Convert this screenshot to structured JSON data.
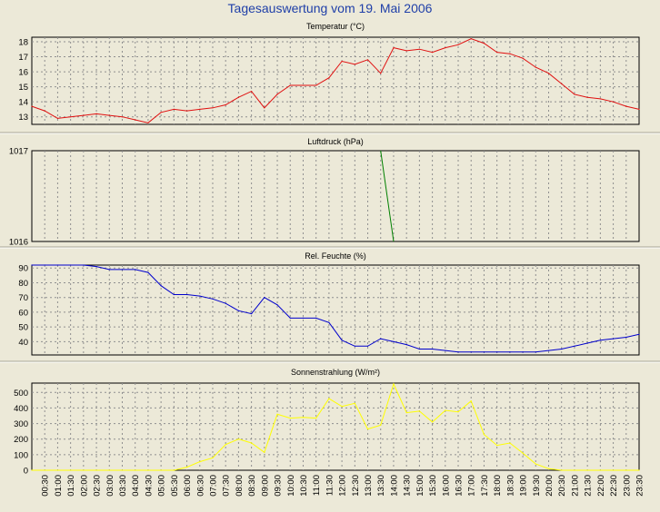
{
  "title": "Tagesauswertung vom 19. Mai 2006",
  "chart_data": [
    {
      "type": "line",
      "title": "Temperatur (°C)",
      "color": "#e01010",
      "ylim": [
        12.5,
        18.3
      ],
      "yticks": [
        13,
        14,
        15,
        16,
        17,
        18
      ],
      "grid": true,
      "x": [
        "00:00",
        "00:30",
        "01:00",
        "01:30",
        "02:00",
        "02:30",
        "03:00",
        "03:30",
        "04:00",
        "04:30",
        "05:00",
        "05:30",
        "06:00",
        "06:30",
        "07:00",
        "07:30",
        "08:00",
        "08:30",
        "09:00",
        "09:30",
        "10:00",
        "10:30",
        "11:00",
        "11:30",
        "12:00",
        "12:30",
        "13:00",
        "13:30",
        "14:00",
        "14:30",
        "15:00",
        "15:30",
        "16:00",
        "16:30",
        "17:00",
        "17:30",
        "18:00",
        "18:30",
        "19:00",
        "19:30",
        "20:00",
        "20:30",
        "21:00",
        "21:30",
        "22:00",
        "22:30",
        "23:00",
        "23:30"
      ],
      "values": [
        13.7,
        13.4,
        12.9,
        13.0,
        13.1,
        13.2,
        13.1,
        13.0,
        12.8,
        12.6,
        13.3,
        13.5,
        13.4,
        13.5,
        13.6,
        13.8,
        14.3,
        14.7,
        13.6,
        14.5,
        15.1,
        15.1,
        15.1,
        15.6,
        16.7,
        16.5,
        16.8,
        15.9,
        17.6,
        17.4,
        17.5,
        17.3,
        17.6,
        17.8,
        18.2,
        17.9,
        17.3,
        17.2,
        16.9,
        16.3,
        15.9,
        15.2,
        14.5,
        14.3,
        14.2,
        14.0,
        13.7,
        13.5
      ]
    },
    {
      "type": "line",
      "title": "Luftdruck (hPa)",
      "color": "#008000",
      "ylim": [
        1016,
        1017
      ],
      "yticks": [
        1016,
        1017
      ],
      "grid": true,
      "segment": {
        "x": [
          "13:30",
          "14:00"
        ],
        "values": [
          1017,
          1016
        ]
      }
    },
    {
      "type": "line",
      "title": "Rel. Feuchte (%)",
      "color": "#0000cc",
      "ylim": [
        31,
        92
      ],
      "yticks": [
        40,
        50,
        60,
        70,
        80,
        90
      ],
      "grid": true,
      "x": [
        "00:00",
        "00:30",
        "01:00",
        "01:30",
        "02:00",
        "02:30",
        "03:00",
        "03:30",
        "04:00",
        "04:30",
        "05:00",
        "05:30",
        "06:00",
        "06:30",
        "07:00",
        "07:30",
        "08:00",
        "08:30",
        "09:00",
        "09:30",
        "10:00",
        "10:30",
        "11:00",
        "11:30",
        "12:00",
        "12:30",
        "13:00",
        "13:30",
        "14:00",
        "14:30",
        "15:00",
        "15:30",
        "16:00",
        "16:30",
        "17:00",
        "17:30",
        "18:00",
        "18:30",
        "19:00",
        "19:30",
        "20:00",
        "20:30",
        "21:00",
        "21:30",
        "22:00",
        "22:30",
        "23:00",
        "23:30"
      ],
      "values": [
        93,
        92,
        93,
        93,
        93,
        91,
        89,
        89,
        89,
        87,
        78,
        72,
        72,
        71,
        69,
        66,
        61,
        59,
        70,
        65,
        56,
        56,
        56,
        53,
        41,
        37,
        37,
        42,
        40,
        38,
        35,
        35,
        34,
        33,
        33,
        33,
        33,
        33,
        33,
        33,
        34,
        35,
        37,
        39,
        41,
        42,
        43,
        45
      ]
    },
    {
      "type": "line",
      "title": "Sonnenstrahlung (W/m²)",
      "color": "#ffff00",
      "ylim": [
        0,
        560
      ],
      "yticks": [
        0,
        100,
        200,
        300,
        400,
        500
      ],
      "grid": true,
      "x": [
        "00:00",
        "00:30",
        "01:00",
        "01:30",
        "02:00",
        "02:30",
        "03:00",
        "03:30",
        "04:00",
        "04:30",
        "05:00",
        "05:30",
        "06:00",
        "06:30",
        "07:00",
        "07:30",
        "08:00",
        "08:30",
        "09:00",
        "09:30",
        "10:00",
        "10:30",
        "11:00",
        "11:30",
        "12:00",
        "12:30",
        "13:00",
        "13:30",
        "14:00",
        "14:30",
        "15:00",
        "15:30",
        "16:00",
        "16:30",
        "17:00",
        "17:30",
        "18:00",
        "18:30",
        "19:00",
        "19:30",
        "20:00",
        "20:30",
        "21:00",
        "21:30",
        "22:00",
        "22:30",
        "23:00",
        "23:30"
      ],
      "values": [
        0,
        0,
        0,
        0,
        0,
        0,
        0,
        0,
        0,
        0,
        0,
        0,
        20,
        55,
        80,
        165,
        200,
        175,
        115,
        360,
        335,
        340,
        335,
        460,
        410,
        430,
        265,
        290,
        555,
        370,
        380,
        310,
        385,
        375,
        445,
        230,
        160,
        175,
        110,
        40,
        10,
        0,
        0,
        0,
        0,
        0,
        0,
        0
      ]
    }
  ],
  "x_tick_labels": [
    "00:30",
    "01:00",
    "01:30",
    "02:00",
    "02:30",
    "03:00",
    "03:30",
    "04:00",
    "04:30",
    "05:00",
    "05:30",
    "06:00",
    "06:30",
    "07:00",
    "07:30",
    "08:00",
    "08:30",
    "09:00",
    "09:30",
    "10:00",
    "10:30",
    "11:00",
    "11:30",
    "12:00",
    "12:30",
    "13:00",
    "13:30",
    "14:00",
    "14:30",
    "15:00",
    "15:30",
    "16:00",
    "16:30",
    "17:00",
    "17:30",
    "18:00",
    "18:30",
    "19:00",
    "19:30",
    "20:00",
    "20:30",
    "21:00",
    "21:30",
    "22:00",
    "22:30",
    "23:00",
    "23:30"
  ]
}
